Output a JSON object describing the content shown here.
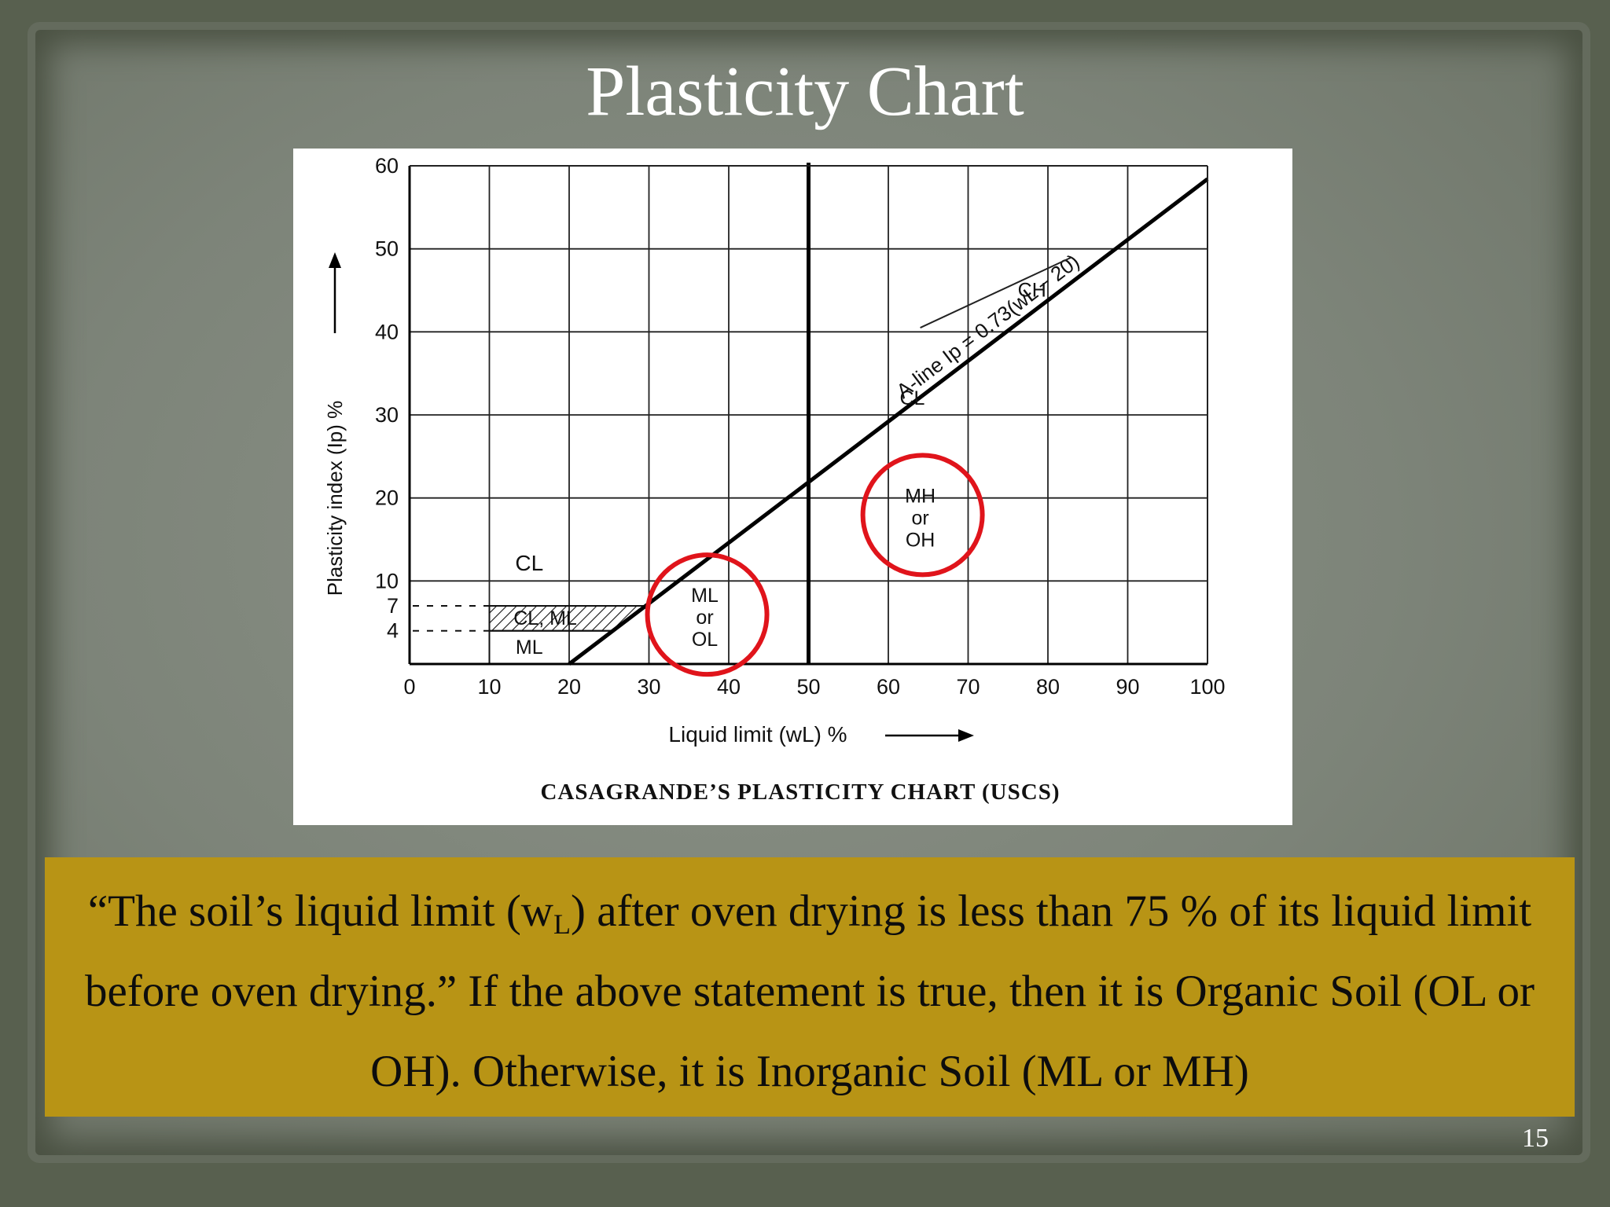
{
  "slide": {
    "title": "Plasticity Chart",
    "page_number": "15"
  },
  "caption": {
    "part1": "“The soil’s liquid limit (w",
    "sub": "L",
    "part2": ") after oven drying is less than 75 % of its liquid limit before oven drying.” If the above statement is true, then it is Organic Soil (OL or OH). Otherwise, it is Inorganic Soil (ML or MH)"
  },
  "chart_data": {
    "type": "line",
    "caption": "CASAGRANDE’S PLASTICITY CHART (USCS)",
    "xlabel": "Liquid limit (wL) %",
    "ylabel": "Plasticity index (Ip) %",
    "xlim": [
      0,
      100
    ],
    "ylim": [
      0,
      60
    ],
    "x_ticks": [
      0,
      10,
      20,
      30,
      40,
      50,
      60,
      70,
      80,
      90,
      100
    ],
    "y_ticks": [
      4,
      7,
      10,
      20,
      30,
      40,
      50,
      60
    ],
    "grid": true,
    "a_line": {
      "label": "A-line Ip = 0.73(wL − 20)",
      "x": [
        20,
        100
      ],
      "y": [
        0,
        58.4
      ]
    },
    "vertical_line_x": 50,
    "zones": [
      {
        "label": "CL",
        "x": 63,
        "y": 32
      },
      {
        "label": "CH",
        "x": 78,
        "y": 45
      },
      {
        "label": "CL",
        "x": 15,
        "y": 12
      },
      {
        "label": "CL, ML",
        "x": 17,
        "y": 5.5
      },
      {
        "label": "ML",
        "x": 15,
        "y": 2
      },
      {
        "label": "ML or OL",
        "x": 37,
        "y": 5
      },
      {
        "label": "MH or OH",
        "x": 64,
        "y": 17
      }
    ],
    "highlighted_zones": [
      "ML or OL",
      "MH or OH"
    ],
    "highlight_color": "#e0141b"
  }
}
